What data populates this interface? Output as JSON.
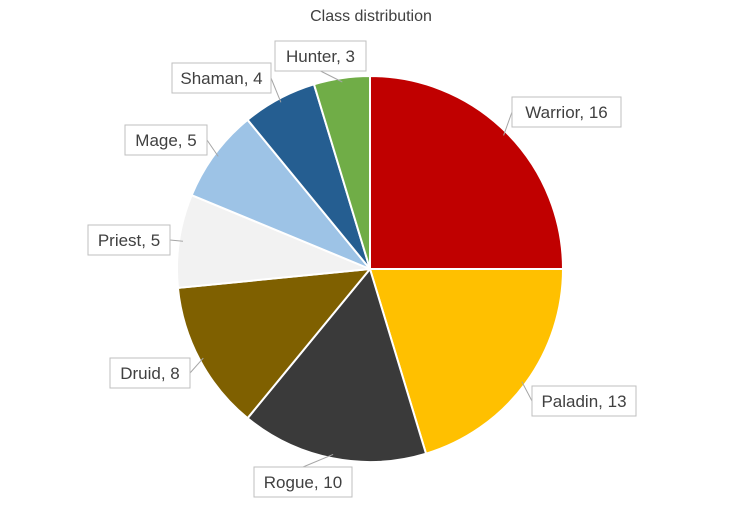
{
  "chart_data": {
    "type": "pie",
    "title": "Class distribution",
    "legend": "none",
    "start_angle_deg": 0,
    "direction": "clockwise",
    "slices": [
      {
        "label": "Warrior",
        "value": 16,
        "color": "#C00000",
        "display": "Warrior, 16"
      },
      {
        "label": "Paladin",
        "value": 13,
        "color": "#FFC000",
        "display": "Paladin, 13"
      },
      {
        "label": "Rogue",
        "value": 10,
        "color": "#3A3A3A",
        "display": "Rogue, 10"
      },
      {
        "label": "Druid",
        "value": 8,
        "color": "#7F6000",
        "display": "Druid, 8"
      },
      {
        "label": "Priest",
        "value": 5,
        "color": "#F2F2F2",
        "display": "Priest, 5"
      },
      {
        "label": "Mage",
        "value": 5,
        "color": "#9DC3E6",
        "display": "Mage, 5"
      },
      {
        "label": "Shaman",
        "value": 4,
        "color": "#255E91",
        "display": "Shaman, 4"
      },
      {
        "label": "Hunter",
        "value": 3,
        "color": "#70AD47",
        "display": "Hunter, 3"
      }
    ]
  }
}
